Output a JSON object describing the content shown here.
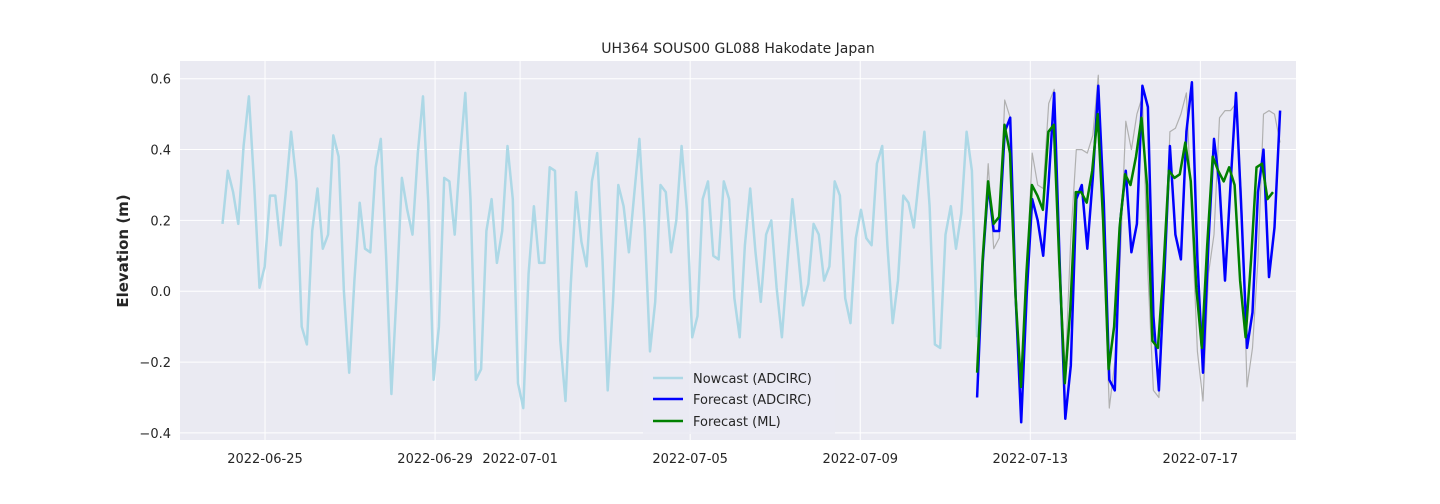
{
  "chart_data": {
    "type": "line",
    "title": "UH364 SOUS00 GL088 Hakodate Japan",
    "xlabel": "",
    "ylabel": "Elevation (m)",
    "x_ticks": [
      "2022-06-25",
      "2022-06-29",
      "2022-07-01",
      "2022-07-05",
      "2022-07-09",
      "2022-07-13",
      "2022-07-17"
    ],
    "y_ticks": [
      -0.4,
      -0.2,
      0.0,
      0.2,
      0.4,
      0.6
    ],
    "y_tick_labels": [
      "−0.4",
      "−0.2",
      "0.0",
      "0.2",
      "0.4",
      "0.6"
    ],
    "ylim": [
      -0.42,
      0.65
    ],
    "xlim": [
      "2022-06-23",
      "2022-07-19 06:00"
    ],
    "grid": true,
    "legend_position": "lower center",
    "colors": {
      "background": "#eaeaf2",
      "grid": "#ffffff",
      "nowcast": "#add8e6",
      "forecast_adcirc": "#0000ff",
      "forecast_ml": "#008000",
      "observed": "#b0b0b0"
    },
    "series": [
      {
        "name": "Nowcast (ADCIRC)",
        "color": "#add8e6",
        "x_start": "2022-06-24 00:00",
        "x_end": "2022-07-11 18:00",
        "y": [
          0.19,
          0.34,
          0.28,
          0.19,
          0.41,
          0.55,
          0.3,
          0.01,
          0.07,
          0.27,
          0.27,
          0.13,
          0.28,
          0.45,
          0.31,
          -0.1,
          -0.15,
          0.17,
          0.29,
          0.12,
          0.16,
          0.44,
          0.38,
          0.0,
          -0.23,
          0.03,
          0.25,
          0.12,
          0.11,
          0.35,
          0.43,
          0.1,
          -0.29,
          0.0,
          0.32,
          0.23,
          0.16,
          0.39,
          0.55,
          0.25,
          -0.25,
          -0.1,
          0.32,
          0.31,
          0.16,
          0.38,
          0.56,
          0.26,
          -0.25,
          -0.22,
          0.17,
          0.26,
          0.08,
          0.17,
          0.41,
          0.26,
          -0.26,
          -0.33,
          0.05,
          0.24,
          0.08,
          0.08,
          0.35,
          0.34,
          -0.14,
          -0.31,
          0.02,
          0.28,
          0.14,
          0.07,
          0.31,
          0.39,
          0.09,
          -0.28,
          -0.03,
          0.3,
          0.24,
          0.11,
          0.27,
          0.43,
          0.18,
          -0.17,
          -0.03,
          0.3,
          0.28,
          0.11,
          0.2,
          0.41,
          0.23,
          -0.13,
          -0.07,
          0.26,
          0.31,
          0.1,
          0.09,
          0.31,
          0.26,
          -0.02,
          -0.13,
          0.13,
          0.29,
          0.11,
          -0.03,
          0.16,
          0.2,
          0.01,
          -0.13,
          0.07,
          0.26,
          0.12,
          -0.04,
          0.02,
          0.19,
          0.16,
          0.03,
          0.07,
          0.31,
          0.27,
          -0.02,
          -0.09,
          0.15,
          0.23,
          0.15,
          0.13,
          0.36,
          0.41,
          0.13,
          -0.09,
          0.03,
          0.27,
          0.25,
          0.18,
          0.32,
          0.45,
          0.24,
          -0.15,
          -0.16,
          0.16,
          0.24,
          0.12,
          0.22,
          0.45,
          0.34,
          -0.13
        ]
      },
      {
        "name": "Observed",
        "color": "#b0b0b0",
        "x_start": "2022-07-11 18:00",
        "x_end": "2022-07-18 21:00",
        "y": [
          -0.2,
          0.1,
          0.36,
          0.12,
          0.15,
          0.54,
          0.49,
          0.0,
          -0.27,
          0.05,
          0.39,
          0.3,
          0.29,
          0.53,
          0.57,
          0.05,
          -0.22,
          0.15,
          0.4,
          0.4,
          0.39,
          0.44,
          0.61,
          0.1,
          -0.33,
          -0.2,
          0.1,
          0.48,
          0.4,
          0.5,
          0.55,
          0.05,
          -0.28,
          -0.3,
          0.02,
          0.45,
          0.46,
          0.5,
          0.56,
          0.2,
          -0.17,
          -0.31,
          0.05,
          0.16,
          0.49,
          0.51,
          0.51,
          0.53,
          0.27,
          -0.27,
          -0.16,
          0.09,
          0.5,
          0.51,
          0.5,
          0.42
        ]
      },
      {
        "name": "Forecast (ADCIRC)",
        "color": "#0000ff",
        "x_start": "2022-07-11 18:00",
        "x_end": "2022-07-18 21:00",
        "y": [
          -0.3,
          0.08,
          0.3,
          0.17,
          0.17,
          0.45,
          0.49,
          -0.02,
          -0.37,
          -0.01,
          0.26,
          0.2,
          0.1,
          0.31,
          0.56,
          0.07,
          -0.36,
          -0.21,
          0.26,
          0.3,
          0.12,
          0.32,
          0.58,
          0.25,
          -0.25,
          -0.28,
          0.2,
          0.34,
          0.11,
          0.19,
          0.58,
          0.52,
          -0.07,
          -0.28,
          0.05,
          0.41,
          0.16,
          0.09,
          0.45,
          0.59,
          0.09,
          -0.23,
          0.14,
          0.43,
          0.3,
          0.03,
          0.3,
          0.56,
          0.22,
          -0.16,
          -0.06,
          0.28,
          0.4,
          0.04,
          0.18,
          0.51
        ]
      },
      {
        "name": "Forecast (ML)",
        "color": "#008000",
        "x_start": "2022-07-11 18:00",
        "x_end": "2022-07-18 17:00",
        "y": [
          -0.23,
          0.09,
          0.31,
          0.19,
          0.21,
          0.47,
          0.39,
          -0.01,
          -0.27,
          0.05,
          0.3,
          0.27,
          0.23,
          0.45,
          0.47,
          0.08,
          -0.26,
          -0.05,
          0.28,
          0.28,
          0.25,
          0.34,
          0.5,
          0.2,
          -0.22,
          -0.1,
          0.18,
          0.33,
          0.3,
          0.38,
          0.49,
          0.3,
          -0.14,
          -0.16,
          0.06,
          0.34,
          0.32,
          0.33,
          0.42,
          0.31,
          0.01,
          -0.16,
          0.13,
          0.38,
          0.34,
          0.31,
          0.35,
          0.3,
          0.03,
          -0.13,
          0.09,
          0.35,
          0.36,
          0.26,
          0.28
        ]
      }
    ],
    "legend": [
      "Nowcast (ADCIRC)",
      "Forecast (ADCIRC)",
      "Forecast (ML)"
    ]
  }
}
